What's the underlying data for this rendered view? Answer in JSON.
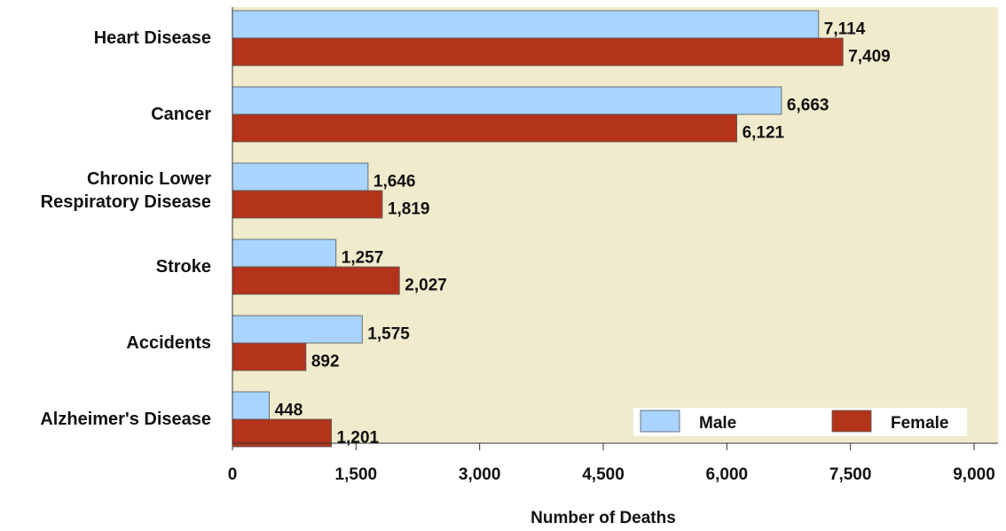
{
  "chart_data": {
    "type": "barh",
    "categories": [
      "Heart Disease",
      "Cancer",
      "Chronic Lower Respiratory Disease",
      "Stroke",
      "Accidents",
      "Alzheimer's Disease"
    ],
    "series": [
      {
        "name": "Male",
        "color": "#a8d4ff",
        "values": [
          7114,
          6663,
          1646,
          1257,
          1575,
          448
        ],
        "value_labels": [
          "7,114",
          "6,663",
          "1,646",
          "1,257",
          "1,575",
          "448"
        ]
      },
      {
        "name": "Female",
        "color": "#b3341b",
        "values": [
          7409,
          6121,
          1819,
          2027,
          892,
          1201
        ],
        "value_labels": [
          "7,409",
          "6,121",
          "1,819",
          "2,027",
          "892",
          "1,201"
        ]
      }
    ],
    "x_label": "Number of Deaths",
    "xlim": [
      0,
      9000
    ],
    "xticks": [
      0,
      {
        "value": 1500,
        "label": "1,500"
      },
      {
        "value": 3000,
        "label": "3,000"
      },
      {
        "value": 4500,
        "label": "4,500"
      },
      {
        "value": 6000,
        "label": "6,000"
      },
      {
        "value": 7500,
        "label": "7,500"
      },
      {
        "value": 9000,
        "label": "9,000"
      }
    ],
    "legend": "lower-right",
    "background": "#f0ebcc"
  }
}
